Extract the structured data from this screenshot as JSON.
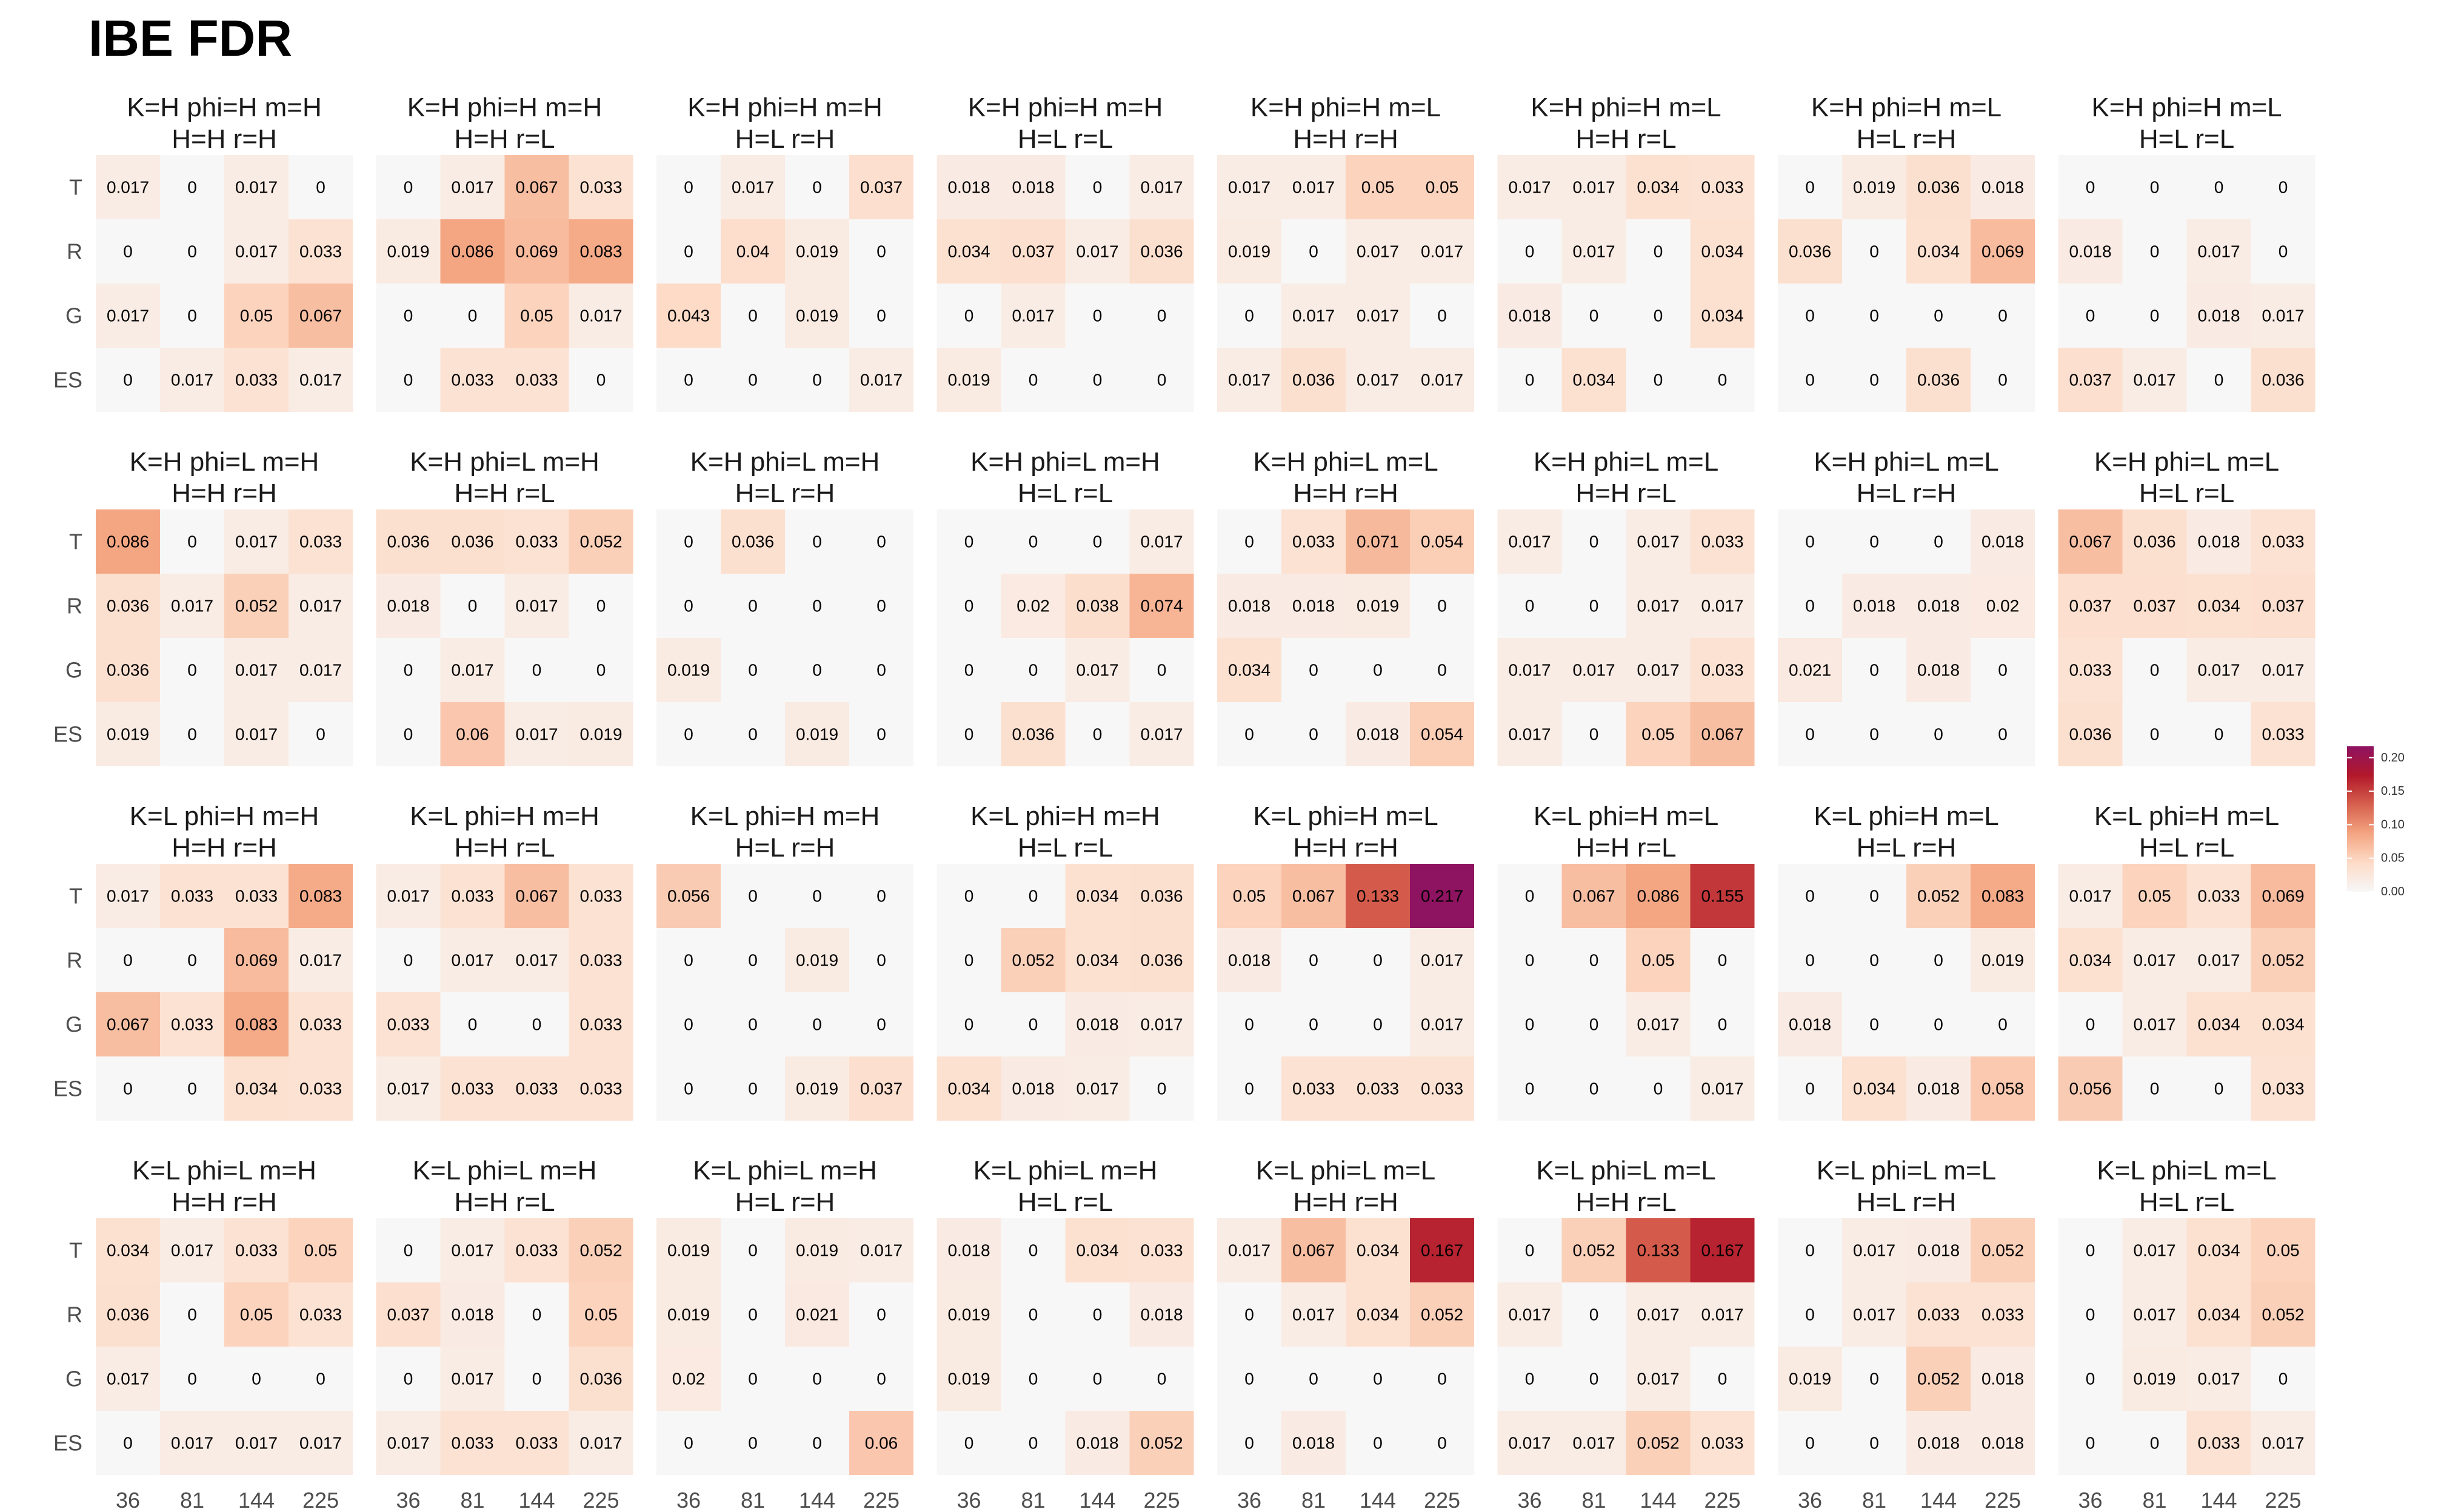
{
  "chart_data": {
    "type": "heatmap",
    "title": "IBE FDR",
    "xlabel": "",
    "ylabel": "",
    "x_categories": [
      "36",
      "81",
      "144",
      "225"
    ],
    "y_categories": [
      "T",
      "R",
      "G",
      "ES"
    ],
    "legend": {
      "position": "right",
      "ticks": [
        "0.20",
        "0.15",
        "0.10",
        "0.05",
        "0.00"
      ],
      "range": [
        0,
        0.217
      ],
      "colors": [
        "#f7f7f7",
        "#fddbc7",
        "#f4a582",
        "#d6604d",
        "#b2182b",
        "#8e1361"
      ]
    },
    "facets": [
      {
        "title_line1": "K=H phi=H m=H",
        "title_line2": "H=H r=H",
        "values": [
          [
            "0.017",
            "0",
            "0.017",
            "0"
          ],
          [
            "0",
            "0",
            "0.017",
            "0.033"
          ],
          [
            "0.017",
            "0",
            "0.05",
            "0.067"
          ],
          [
            "0",
            "0.017",
            "0.033",
            "0.017"
          ]
        ]
      },
      {
        "title_line1": "K=H phi=H m=H",
        "title_line2": "H=H r=L",
        "values": [
          [
            "0",
            "0.017",
            "0.067",
            "0.033"
          ],
          [
            "0.019",
            "0.086",
            "0.069",
            "0.083"
          ],
          [
            "0",
            "0",
            "0.05",
            "0.017"
          ],
          [
            "0",
            "0.033",
            "0.033",
            "0"
          ]
        ]
      },
      {
        "title_line1": "K=H phi=H m=H",
        "title_line2": "H=L r=H",
        "values": [
          [
            "0",
            "0.017",
            "0",
            "0.037"
          ],
          [
            "0",
            "0.04",
            "0.019",
            "0"
          ],
          [
            "0.043",
            "0",
            "0.019",
            "0"
          ],
          [
            "0",
            "0",
            "0",
            "0.017"
          ]
        ]
      },
      {
        "title_line1": "K=H phi=H m=H",
        "title_line2": "H=L r=L",
        "values": [
          [
            "0.018",
            "0.018",
            "0",
            "0.017"
          ],
          [
            "0.034",
            "0.037",
            "0.017",
            "0.036"
          ],
          [
            "0",
            "0.017",
            "0",
            "0"
          ],
          [
            "0.019",
            "0",
            "0",
            "0"
          ]
        ]
      },
      {
        "title_line1": "K=H phi=H m=L",
        "title_line2": "H=H r=H",
        "values": [
          [
            "0.017",
            "0.017",
            "0.05",
            "0.05"
          ],
          [
            "0.019",
            "0",
            "0.017",
            "0.017"
          ],
          [
            "0",
            "0.017",
            "0.017",
            "0"
          ],
          [
            "0.017",
            "0.036",
            "0.017",
            "0.017"
          ]
        ]
      },
      {
        "title_line1": "K=H phi=H m=L",
        "title_line2": "H=H r=L",
        "values": [
          [
            "0.017",
            "0.017",
            "0.034",
            "0.033"
          ],
          [
            "0",
            "0.017",
            "0",
            "0.034"
          ],
          [
            "0.018",
            "0",
            "0",
            "0.034"
          ],
          [
            "0",
            "0.034",
            "0",
            "0"
          ]
        ]
      },
      {
        "title_line1": "K=H phi=H m=L",
        "title_line2": "H=L r=H",
        "values": [
          [
            "0",
            "0.019",
            "0.036",
            "0.018"
          ],
          [
            "0.036",
            "0",
            "0.034",
            "0.069"
          ],
          [
            "0",
            "0",
            "0",
            "0"
          ],
          [
            "0",
            "0",
            "0.036",
            "0"
          ]
        ]
      },
      {
        "title_line1": "K=H phi=H m=L",
        "title_line2": "H=L r=L",
        "values": [
          [
            "0",
            "0",
            "0",
            "0"
          ],
          [
            "0.018",
            "0",
            "0.017",
            "0"
          ],
          [
            "0",
            "0",
            "0.018",
            "0.017"
          ],
          [
            "0.037",
            "0.017",
            "0",
            "0.036"
          ]
        ]
      },
      {
        "title_line1": "K=H phi=L m=H",
        "title_line2": "H=H r=H",
        "values": [
          [
            "0.086",
            "0",
            "0.017",
            "0.033"
          ],
          [
            "0.036",
            "0.017",
            "0.052",
            "0.017"
          ],
          [
            "0.036",
            "0",
            "0.017",
            "0.017"
          ],
          [
            "0.019",
            "0",
            "0.017",
            "0"
          ]
        ]
      },
      {
        "title_line1": "K=H phi=L m=H",
        "title_line2": "H=H r=L",
        "values": [
          [
            "0.036",
            "0.036",
            "0.033",
            "0.052"
          ],
          [
            "0.018",
            "0",
            "0.017",
            "0"
          ],
          [
            "0",
            "0.017",
            "0",
            "0"
          ],
          [
            "0",
            "0.06",
            "0.017",
            "0.019"
          ]
        ]
      },
      {
        "title_line1": "K=H phi=L m=H",
        "title_line2": "H=L r=H",
        "values": [
          [
            "0",
            "0.036",
            "0",
            "0"
          ],
          [
            "0",
            "0",
            "0",
            "0"
          ],
          [
            "0.019",
            "0",
            "0",
            "0"
          ],
          [
            "0",
            "0",
            "0.019",
            "0"
          ]
        ]
      },
      {
        "title_line1": "K=H phi=L m=H",
        "title_line2": "H=L r=L",
        "values": [
          [
            "0",
            "0",
            "0",
            "0.017"
          ],
          [
            "0",
            "0.02",
            "0.038",
            "0.074"
          ],
          [
            "0",
            "0",
            "0.017",
            "0"
          ],
          [
            "0",
            "0.036",
            "0",
            "0.017"
          ]
        ]
      },
      {
        "title_line1": "K=H phi=L m=L",
        "title_line2": "H=H r=H",
        "values": [
          [
            "0",
            "0.033",
            "0.071",
            "0.054"
          ],
          [
            "0.018",
            "0.018",
            "0.019",
            "0"
          ],
          [
            "0.034",
            "0",
            "0",
            "0"
          ],
          [
            "0",
            "0",
            "0.018",
            "0.054"
          ]
        ]
      },
      {
        "title_line1": "K=H phi=L m=L",
        "title_line2": "H=H r=L",
        "values": [
          [
            "0.017",
            "0",
            "0.017",
            "0.033"
          ],
          [
            "0",
            "0",
            "0.017",
            "0.017"
          ],
          [
            "0.017",
            "0.017",
            "0.017",
            "0.033"
          ],
          [
            "0.017",
            "0",
            "0.05",
            "0.067"
          ]
        ]
      },
      {
        "title_line1": "K=H phi=L m=L",
        "title_line2": "H=L r=H",
        "values": [
          [
            "0",
            "0",
            "0",
            "0.018"
          ],
          [
            "0",
            "0.018",
            "0.018",
            "0.02"
          ],
          [
            "0.021",
            "0",
            "0.018",
            "0"
          ],
          [
            "0",
            "0",
            "0",
            "0"
          ]
        ]
      },
      {
        "title_line1": "K=H phi=L m=L",
        "title_line2": "H=L r=L",
        "values": [
          [
            "0.067",
            "0.036",
            "0.018",
            "0.033"
          ],
          [
            "0.037",
            "0.037",
            "0.034",
            "0.037"
          ],
          [
            "0.033",
            "0",
            "0.017",
            "0.017"
          ],
          [
            "0.036",
            "0",
            "0",
            "0.033"
          ]
        ]
      },
      {
        "title_line1": "K=L phi=H m=H",
        "title_line2": "H=H r=H",
        "values": [
          [
            "0.017",
            "0.033",
            "0.033",
            "0.083"
          ],
          [
            "0",
            "0",
            "0.069",
            "0.017"
          ],
          [
            "0.067",
            "0.033",
            "0.083",
            "0.033"
          ],
          [
            "0",
            "0",
            "0.034",
            "0.033"
          ]
        ]
      },
      {
        "title_line1": "K=L phi=H m=H",
        "title_line2": "H=H r=L",
        "values": [
          [
            "0.017",
            "0.033",
            "0.067",
            "0.033"
          ],
          [
            "0",
            "0.017",
            "0.017",
            "0.033"
          ],
          [
            "0.033",
            "0",
            "0",
            "0.033"
          ],
          [
            "0.017",
            "0.033",
            "0.033",
            "0.033"
          ]
        ]
      },
      {
        "title_line1": "K=L phi=H m=H",
        "title_line2": "H=L r=H",
        "values": [
          [
            "0.056",
            "0",
            "0",
            "0"
          ],
          [
            "0",
            "0",
            "0.019",
            "0"
          ],
          [
            "0",
            "0",
            "0",
            "0"
          ],
          [
            "0",
            "0",
            "0.019",
            "0.037"
          ]
        ]
      },
      {
        "title_line1": "K=L phi=H m=H",
        "title_line2": "H=L r=L",
        "values": [
          [
            "0",
            "0",
            "0.034",
            "0.036"
          ],
          [
            "0",
            "0.052",
            "0.034",
            "0.036"
          ],
          [
            "0",
            "0",
            "0.018",
            "0.017"
          ],
          [
            "0.034",
            "0.018",
            "0.017",
            "0"
          ]
        ]
      },
      {
        "title_line1": "K=L phi=H m=L",
        "title_line2": "H=H r=H",
        "values": [
          [
            "0.05",
            "0.067",
            "0.133",
            "0.217"
          ],
          [
            "0.018",
            "0",
            "0",
            "0.017"
          ],
          [
            "0",
            "0",
            "0",
            "0.017"
          ],
          [
            "0",
            "0.033",
            "0.033",
            "0.033"
          ]
        ]
      },
      {
        "title_line1": "K=L phi=H m=L",
        "title_line2": "H=H r=L",
        "values": [
          [
            "0",
            "0.067",
            "0.086",
            "0.155"
          ],
          [
            "0",
            "0",
            "0.05",
            "0"
          ],
          [
            "0",
            "0",
            "0.017",
            "0"
          ],
          [
            "0",
            "0",
            "0",
            "0.017"
          ]
        ]
      },
      {
        "title_line1": "K=L phi=H m=L",
        "title_line2": "H=L r=H",
        "values": [
          [
            "0",
            "0",
            "0.052",
            "0.083"
          ],
          [
            "0",
            "0",
            "0",
            "0.019"
          ],
          [
            "0.018",
            "0",
            "0",
            "0"
          ],
          [
            "0",
            "0.034",
            "0.018",
            "0.058"
          ]
        ]
      },
      {
        "title_line1": "K=L phi=H m=L",
        "title_line2": "H=L r=L",
        "values": [
          [
            "0.017",
            "0.05",
            "0.033",
            "0.069"
          ],
          [
            "0.034",
            "0.017",
            "0.017",
            "0.052"
          ],
          [
            "0",
            "0.017",
            "0.034",
            "0.034"
          ],
          [
            "0.056",
            "0",
            "0",
            "0.033"
          ]
        ]
      },
      {
        "title_line1": "K=L phi=L m=H",
        "title_line2": "H=H r=H",
        "values": [
          [
            "0.034",
            "0.017",
            "0.033",
            "0.05"
          ],
          [
            "0.036",
            "0",
            "0.05",
            "0.033"
          ],
          [
            "0.017",
            "0",
            "0",
            "0"
          ],
          [
            "0",
            "0.017",
            "0.017",
            "0.017"
          ]
        ]
      },
      {
        "title_line1": "K=L phi=L m=H",
        "title_line2": "H=H r=L",
        "values": [
          [
            "0",
            "0.017",
            "0.033",
            "0.052"
          ],
          [
            "0.037",
            "0.018",
            "0",
            "0.05"
          ],
          [
            "0",
            "0.017",
            "0",
            "0.036"
          ],
          [
            "0.017",
            "0.033",
            "0.033",
            "0.017"
          ]
        ]
      },
      {
        "title_line1": "K=L phi=L m=H",
        "title_line2": "H=L r=H",
        "values": [
          [
            "0.019",
            "0",
            "0.019",
            "0.017"
          ],
          [
            "0.019",
            "0",
            "0.021",
            "0"
          ],
          [
            "0.02",
            "0",
            "0",
            "0"
          ],
          [
            "0",
            "0",
            "0",
            "0.06"
          ]
        ]
      },
      {
        "title_line1": "K=L phi=L m=H",
        "title_line2": "H=L r=L",
        "values": [
          [
            "0.018",
            "0",
            "0.034",
            "0.033"
          ],
          [
            "0.019",
            "0",
            "0",
            "0.018"
          ],
          [
            "0.019",
            "0",
            "0",
            "0"
          ],
          [
            "0",
            "0",
            "0.018",
            "0.052"
          ]
        ]
      },
      {
        "title_line1": "K=L phi=L m=L",
        "title_line2": "H=H r=H",
        "values": [
          [
            "0.017",
            "0.067",
            "0.034",
            "0.167"
          ],
          [
            "0",
            "0.017",
            "0.034",
            "0.052"
          ],
          [
            "0",
            "0",
            "0",
            "0"
          ],
          [
            "0",
            "0.018",
            "0",
            "0"
          ]
        ]
      },
      {
        "title_line1": "K=L phi=L m=L",
        "title_line2": "H=H r=L",
        "values": [
          [
            "0",
            "0.052",
            "0.133",
            "0.167"
          ],
          [
            "0.017",
            "0",
            "0.017",
            "0.017"
          ],
          [
            "0",
            "0",
            "0.017",
            "0"
          ],
          [
            "0.017",
            "0.017",
            "0.052",
            "0.033"
          ]
        ]
      },
      {
        "title_line1": "K=L phi=L m=L",
        "title_line2": "H=L r=H",
        "values": [
          [
            "0",
            "0.017",
            "0.018",
            "0.052"
          ],
          [
            "0",
            "0.017",
            "0.033",
            "0.033"
          ],
          [
            "0.019",
            "0",
            "0.052",
            "0.018"
          ],
          [
            "0",
            "0",
            "0.018",
            "0.018"
          ]
        ]
      },
      {
        "title_line1": "K=L phi=L m=L",
        "title_line2": "H=L r=L",
        "values": [
          [
            "0",
            "0.017",
            "0.034",
            "0.05"
          ],
          [
            "0",
            "0.017",
            "0.034",
            "0.052"
          ],
          [
            "0",
            "0.019",
            "0.017",
            "0"
          ],
          [
            "0",
            "0",
            "0.033",
            "0.017"
          ]
        ]
      }
    ]
  }
}
